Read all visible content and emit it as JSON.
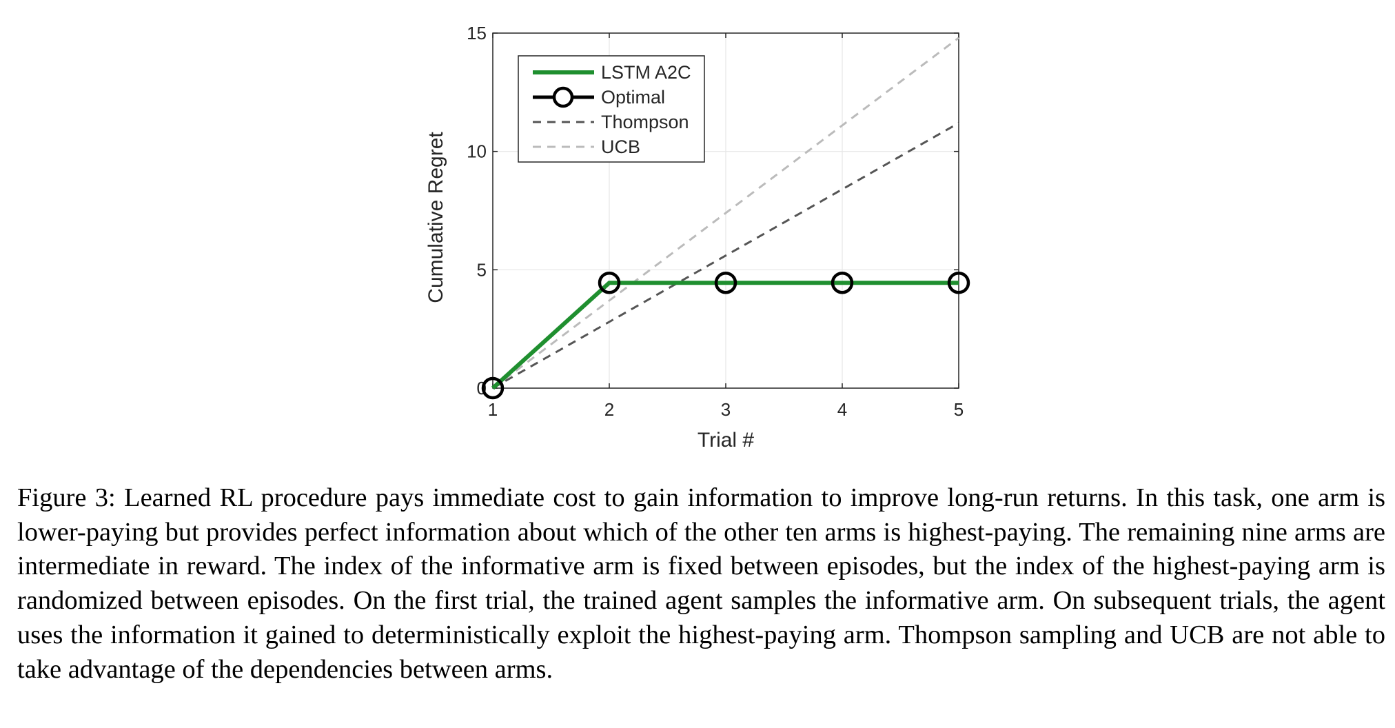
{
  "chart_data": {
    "type": "line",
    "title": "",
    "xlabel": "Trial #",
    "ylabel": "Cumulative Regret",
    "x": [
      1,
      2,
      3,
      4,
      5
    ],
    "xlim": [
      1,
      5
    ],
    "ylim": [
      0,
      15
    ],
    "xticks": [
      "1",
      "2",
      "3",
      "4",
      "5"
    ],
    "yticks": [
      "0",
      "5",
      "10",
      "15"
    ],
    "grid": true,
    "legend_position": "top-left",
    "series": [
      {
        "name": "LSTM A2C",
        "values": [
          0,
          4.45,
          4.45,
          4.45,
          4.45
        ],
        "color": "#1f8f2f",
        "style": "solid"
      },
      {
        "name": "Optimal",
        "values": [
          0,
          4.45,
          4.45,
          4.45,
          4.45
        ],
        "color": "#000000",
        "style": "circle-markers"
      },
      {
        "name": "Thompson",
        "values": [
          0,
          2.8,
          5.6,
          8.4,
          11.2
        ],
        "color": "#555555",
        "style": "dashed"
      },
      {
        "name": "UCB",
        "values": [
          0,
          3.7,
          7.4,
          11.1,
          14.8
        ],
        "color": "#bbbbbb",
        "style": "dashed"
      }
    ]
  },
  "caption": "Figure 3: Learned RL procedure pays immediate cost to gain information to improve long-run returns. In this task, one arm is lower-paying but provides perfect information about which of the other ten arms is highest-paying. The remaining nine arms are intermediate in reward. The index of the informative arm is fixed between episodes, but the index of the highest-paying arm is randomized between episodes. On the first trial, the trained agent samples the informative arm. On subsequent trials, the agent uses the information it gained to deterministically exploit the highest-paying arm. Thompson sampling and UCB are not able to take advantage of the dependencies between arms."
}
